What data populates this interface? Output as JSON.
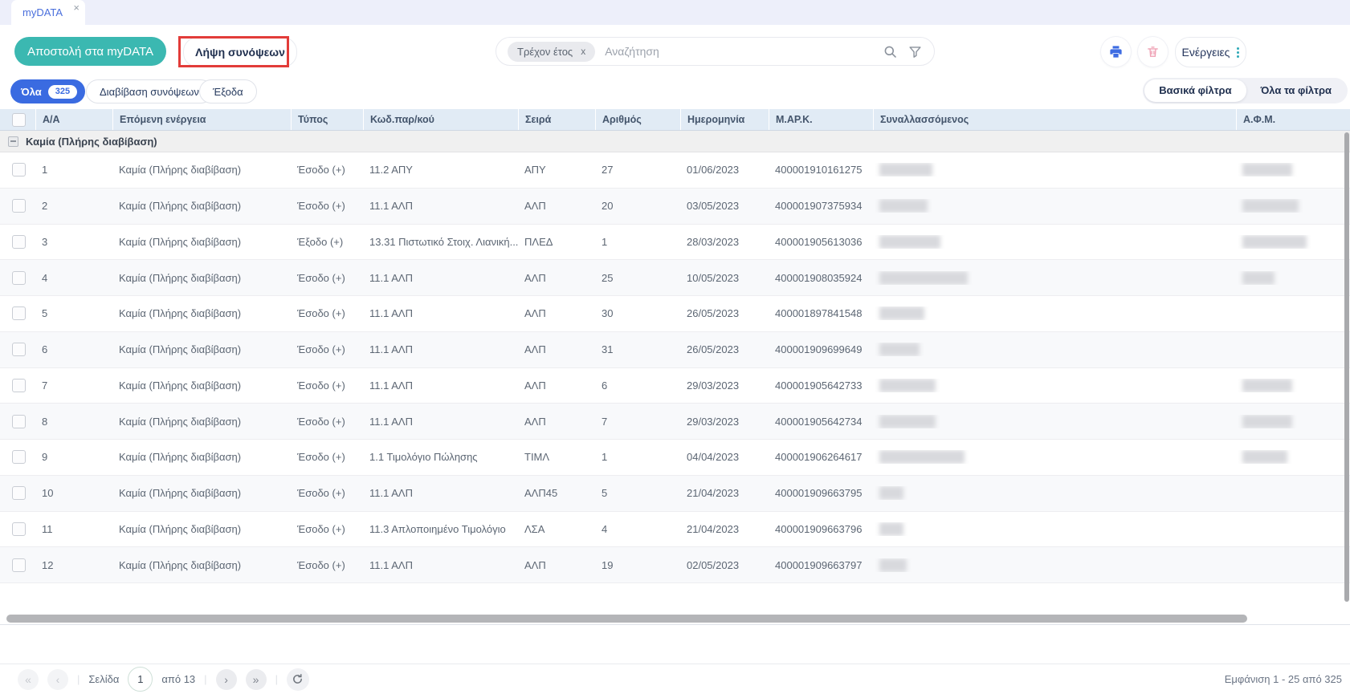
{
  "colors": {
    "accent-teal": "#3bb8b1",
    "accent-blue": "#3a6be1",
    "tab-blue": "#4a6fdc",
    "annotation-red": "#e23c39",
    "header-bg": "#e1ebf5",
    "icon-pink": "#efa0b4",
    "icon-blue": "#3e6ce2",
    "kebab-teal": "#2fa9b7"
  },
  "tab": {
    "label": "myDATA",
    "close_icon": "×"
  },
  "toolbar": {
    "send_mydata": "Αποστολή στα myDATA",
    "fetch_summaries": "Λήψη συνόψεων",
    "search_chip": "Τρέχον έτος",
    "search_chip_close": "x",
    "search_placeholder": "Αναζήτηση",
    "actions": "Ενέργειες"
  },
  "filter_bar": {
    "all_label": "Όλα",
    "all_count": "325",
    "pill_transmit": "Διαβίβαση συνόψεων",
    "pill_expenses": "Έξοδα",
    "seg_basic": "Βασικά φίλτρα",
    "seg_all": "Όλα τα φίλτρα",
    "seg_selected": "Βασικά φίλτρα"
  },
  "table": {
    "columns": [
      "Α/Α",
      "Επόμενη ενέργεια",
      "Τύπος",
      "Κωδ.παρ/κού",
      "Σειρά",
      "Αριθμός",
      "Ημερομηνία",
      "Μ.ΑΡ.Κ.",
      "Συναλλασσόμενος",
      "Α.Φ.Μ."
    ],
    "group_label": "Καμία (Πλήρης διαβίβαση)",
    "rows": [
      {
        "aa": "1",
        "next": "Καμία (Πλήρης διαβίβαση)",
        "type": "Έσοδο (+)",
        "code": "11.2 ΑΠΥ",
        "series": "ΑΠΥ",
        "number": "27",
        "date": "01/06/2023",
        "mark": "400001910161275",
        "party_blur_w": 66,
        "afm_blur_w": 62
      },
      {
        "aa": "2",
        "next": "Καμία (Πλήρης διαβίβαση)",
        "type": "Έσοδο (+)",
        "code": "11.1 ΑΛΠ",
        "series": "ΑΛΠ",
        "number": "20",
        "date": "03/05/2023",
        "mark": "400001907375934",
        "party_blur_w": 60,
        "afm_blur_w": 70
      },
      {
        "aa": "3",
        "next": "Καμία (Πλήρης διαβίβαση)",
        "type": "Έξοδο (+)",
        "code": "13.31 Πιστωτικό Στοιχ. Λιανική...",
        "series": "ΠΛΕΔ",
        "number": "1",
        "date": "28/03/2023",
        "mark": "400001905613036",
        "party_blur_w": 76,
        "afm_blur_w": 80
      },
      {
        "aa": "4",
        "next": "Καμία (Πλήρης διαβίβαση)",
        "type": "Έσοδο (+)",
        "code": "11.1 ΑΛΠ",
        "series": "ΑΛΠ",
        "number": "25",
        "date": "10/05/2023",
        "mark": "400001908035924",
        "party_blur_w": 110,
        "afm_blur_w": 40
      },
      {
        "aa": "5",
        "next": "Καμία (Πλήρης διαβίβαση)",
        "type": "Έσοδο (+)",
        "code": "11.1 ΑΛΠ",
        "series": "ΑΛΠ",
        "number": "30",
        "date": "26/05/2023",
        "mark": "400001897841548",
        "party_blur_w": 56,
        "afm_blur_w": 0
      },
      {
        "aa": "6",
        "next": "Καμία (Πλήρης διαβίβαση)",
        "type": "Έσοδο (+)",
        "code": "11.1 ΑΛΠ",
        "series": "ΑΛΠ",
        "number": "31",
        "date": "26/05/2023",
        "mark": "400001909699649",
        "party_blur_w": 50,
        "afm_blur_w": 0
      },
      {
        "aa": "7",
        "next": "Καμία (Πλήρης διαβίβαση)",
        "type": "Έσοδο (+)",
        "code": "11.1 ΑΛΠ",
        "series": "ΑΛΠ",
        "number": "6",
        "date": "29/03/2023",
        "mark": "400001905642733",
        "party_blur_w": 70,
        "afm_blur_w": 62
      },
      {
        "aa": "8",
        "next": "Καμία (Πλήρης διαβίβαση)",
        "type": "Έσοδο (+)",
        "code": "11.1 ΑΛΠ",
        "series": "ΑΛΠ",
        "number": "7",
        "date": "29/03/2023",
        "mark": "400001905642734",
        "party_blur_w": 70,
        "afm_blur_w": 62
      },
      {
        "aa": "9",
        "next": "Καμία (Πλήρης διαβίβαση)",
        "type": "Έσοδο (+)",
        "code": "1.1 Τιμολόγιο Πώλησης",
        "series": "ΤΙΜΛ",
        "number": "1",
        "date": "04/04/2023",
        "mark": "400001906264617",
        "party_blur_w": 106,
        "afm_blur_w": 56
      },
      {
        "aa": "10",
        "next": "Καμία (Πλήρης διαβίβαση)",
        "type": "Έσοδο (+)",
        "code": "11.1 ΑΛΠ",
        "series": "ΑΛΠ45",
        "number": "5",
        "date": "21/04/2023",
        "mark": "400001909663795",
        "party_blur_w": 30,
        "afm_blur_w": 0
      },
      {
        "aa": "11",
        "next": "Καμία (Πλήρης διαβίβαση)",
        "type": "Έσοδο (+)",
        "code": "11.3 Απλοποιημένο Τιμολόγιο",
        "series": "ΛΣΑ",
        "number": "4",
        "date": "21/04/2023",
        "mark": "400001909663796",
        "party_blur_w": 30,
        "afm_blur_w": 0
      },
      {
        "aa": "12",
        "next": "Καμία (Πλήρης διαβίβαση)",
        "type": "Έσοδο (+)",
        "code": "11.1 ΑΛΠ",
        "series": "ΑΛΠ",
        "number": "19",
        "date": "02/05/2023",
        "mark": "400001909663797",
        "party_blur_w": 34,
        "afm_blur_w": 0
      }
    ]
  },
  "pagination": {
    "first_icon": "«",
    "prev_icon": "‹",
    "next_icon": "›",
    "last_icon": "»",
    "page_label": "Σελίδα",
    "page_value": "1",
    "of_label": "από 13",
    "info": "Εμφάνιση 1 - 25 από 325"
  }
}
